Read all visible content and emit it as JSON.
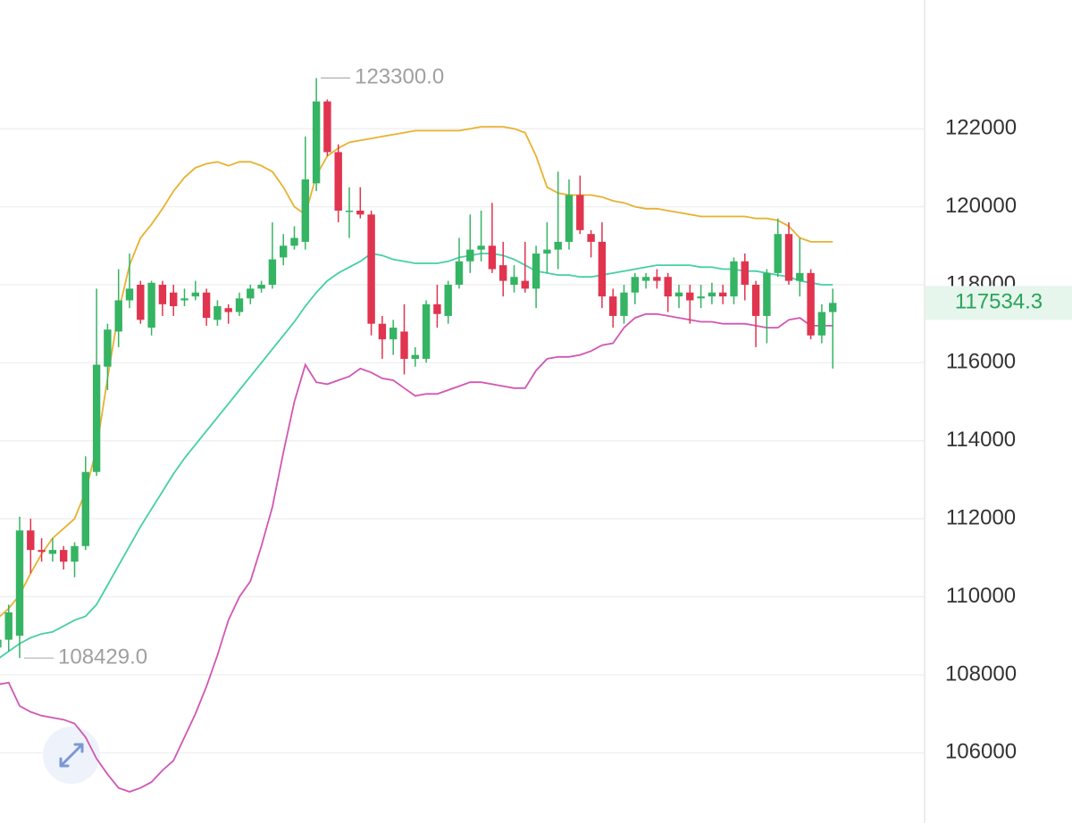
{
  "chart_data": {
    "type": "candlestick",
    "categories": [
      null,
      null,
      null,
      null,
      null,
      null,
      null,
      null,
      null,
      null,
      null,
      null,
      null,
      null,
      null,
      null,
      null,
      null,
      null,
      null,
      null,
      null,
      null,
      null,
      null,
      null,
      null,
      null,
      null,
      null,
      null,
      null,
      null,
      null,
      null,
      null,
      null,
      null,
      null,
      null,
      null,
      null,
      null,
      null,
      null,
      null,
      null,
      null,
      null,
      null,
      null,
      null,
      null,
      null,
      null,
      null,
      null,
      null,
      null,
      null,
      null,
      null,
      null,
      null,
      null,
      null,
      null,
      null,
      null,
      null,
      null,
      null,
      null,
      null,
      null,
      null,
      null
    ],
    "open": [
      108700,
      108900,
      109000,
      111700,
      111200,
      111100,
      111200,
      110900,
      111300,
      113200,
      115900,
      116800,
      117600,
      118000,
      116900,
      118000,
      117800,
      117600,
      117700,
      117800,
      117100,
      117400,
      117300,
      117650,
      117900,
      118000,
      118700,
      119000,
      119100,
      120600,
      122700,
      121400,
      119900,
      119900,
      119800,
      117000,
      116600,
      116800,
      116100,
      116100,
      117500,
      117200,
      118000,
      118600,
      118900,
      119000,
      118500,
      118000,
      118100,
      117900,
      118800,
      118900,
      119100,
      120300,
      119300,
      119100,
      117700,
      117200,
      117800,
      118100,
      118200,
      118200,
      117700,
      117800,
      117650,
      117700,
      117800,
      117700,
      118600,
      118000,
      117200,
      118300,
      119300,
      118100,
      118300,
      116700,
      117300
    ],
    "high": [
      109200,
      109800,
      112050,
      112000,
      111500,
      111500,
      111300,
      111400,
      113600,
      117900,
      117000,
      118400,
      118800,
      118100,
      118100,
      118100,
      118000,
      117900,
      118100,
      117900,
      117600,
      117500,
      117800,
      118000,
      118100,
      119600,
      119300,
      119500,
      121800,
      123300,
      122750,
      121600,
      120500,
      120500,
      119900,
      117200,
      117100,
      117500,
      116400,
      117600,
      118000,
      118100,
      119200,
      119800,
      119900,
      120100,
      119100,
      118500,
      119100,
      119000,
      119600,
      120900,
      120700,
      120800,
      119400,
      119600,
      117900,
      118000,
      118300,
      118300,
      118400,
      118300,
      118000,
      118000,
      118000,
      118050,
      118000,
      118700,
      118800,
      118100,
      118400,
      119700,
      119600,
      119200,
      118400,
      117500,
      117900
    ],
    "low": [
      108500,
      108600,
      108429,
      110600,
      110900,
      110900,
      110700,
      110500,
      111200,
      113100,
      115300,
      116400,
      117400,
      117000,
      116700,
      117200,
      117200,
      117450,
      117600,
      116950,
      116950,
      117000,
      117200,
      117500,
      117800,
      117900,
      118500,
      118900,
      118900,
      120400,
      121300,
      119600,
      119200,
      119700,
      116700,
      116100,
      116200,
      115700,
      115900,
      116000,
      116900,
      117000,
      117900,
      118300,
      118600,
      118300,
      117700,
      117800,
      117800,
      117400,
      118300,
      118400,
      118900,
      119300,
      118700,
      117400,
      116900,
      117000,
      117500,
      117900,
      117900,
      117300,
      117400,
      117000,
      117400,
      117500,
      117500,
      117500,
      117600,
      116400,
      116500,
      118200,
      118000,
      117700,
      116600,
      116500,
      115850
    ],
    "close": [
      108900,
      109600,
      111700,
      111200,
      111150,
      111200,
      110900,
      111300,
      113200,
      115950,
      116850,
      117600,
      117900,
      117100,
      118050,
      117500,
      117450,
      117650,
      117800,
      117150,
      117450,
      117300,
      117650,
      117900,
      118000,
      118650,
      119000,
      119200,
      120700,
      122700,
      121400,
      119900,
      119900,
      119800,
      117000,
      116600,
      116900,
      116100,
      116200,
      117500,
      117250,
      118000,
      118600,
      118900,
      119000,
      118400,
      118100,
      118200,
      117900,
      118800,
      118900,
      119100,
      120300,
      119400,
      119100,
      117700,
      117200,
      117800,
      118200,
      118200,
      118100,
      117700,
      117800,
      117600,
      117700,
      117800,
      117700,
      118600,
      118000,
      117200,
      118300,
      119300,
      118100,
      118300,
      116700,
      117300,
      117534.3
    ],
    "up_color": "#35b463",
    "down_color": "#e0344f",
    "lines": [
      {
        "color": "#e8b130",
        "values": [
          109450,
          109700,
          110050,
          110600,
          111100,
          111500,
          111750,
          112000,
          112700,
          113800,
          115600,
          117300,
          118500,
          119200,
          119550,
          119950,
          120400,
          120750,
          121000,
          121100,
          121150,
          121050,
          121150,
          121150,
          121050,
          120900,
          120500,
          120000,
          119800,
          120800,
          121300,
          121500,
          121650,
          121700,
          121750,
          121800,
          121850,
          121900,
          121950,
          121950,
          121950,
          121950,
          121950,
          122000,
          122050,
          122050,
          122050,
          122000,
          121900,
          121300,
          120500,
          120350,
          120300,
          120300,
          120300,
          120250,
          120150,
          120100,
          120000,
          119950,
          119950,
          119900,
          119850,
          119800,
          119750,
          119750,
          119750,
          119750,
          119750,
          119700,
          119700,
          119650,
          119500,
          119200,
          119100,
          119100,
          119100
        ]
      },
      {
        "color": "#45cfa6",
        "values": [
          108400,
          108600,
          108800,
          108950,
          109050,
          109100,
          109250,
          109400,
          109500,
          109800,
          110300,
          110800,
          111300,
          111800,
          112250,
          112700,
          113150,
          113550,
          113900,
          114250,
          114600,
          114950,
          115300,
          115650,
          116000,
          116350,
          116700,
          117050,
          117450,
          117800,
          118100,
          118300,
          118450,
          118600,
          118800,
          118750,
          118650,
          118600,
          118550,
          118550,
          118550,
          118600,
          118700,
          118750,
          118800,
          118800,
          118750,
          118650,
          118500,
          118350,
          118300,
          118250,
          118250,
          118200,
          118200,
          118250,
          118300,
          118350,
          118400,
          118450,
          118500,
          118500,
          118500,
          118500,
          118450,
          118450,
          118400,
          118400,
          118350,
          118350,
          118300,
          118250,
          118200,
          118100,
          118050,
          118000,
          118000
        ]
      },
      {
        "color": "#d256b4",
        "values": [
          107750,
          107800,
          107200,
          107050,
          106950,
          106900,
          106850,
          106750,
          106400,
          105850,
          105450,
          105100,
          105000,
          105100,
          105250,
          105550,
          105800,
          106400,
          107000,
          107700,
          108500,
          109400,
          110000,
          110400,
          111300,
          112300,
          113700,
          115000,
          115950,
          115500,
          115450,
          115550,
          115650,
          115850,
          115750,
          115600,
          115550,
          115350,
          115150,
          115200,
          115200,
          115300,
          115400,
          115500,
          115500,
          115450,
          115400,
          115350,
          115350,
          115800,
          116100,
          116150,
          116150,
          116200,
          116300,
          116450,
          116500,
          116900,
          117150,
          117250,
          117250,
          117200,
          117150,
          117100,
          117050,
          117050,
          117000,
          117000,
          117000,
          116950,
          116900,
          116900,
          117100,
          117150,
          116950,
          116950,
          116950
        ]
      }
    ],
    "annotations": [
      {
        "value": 123300,
        "label": "123300.0"
      },
      {
        "value": 108429,
        "label": "108429.0"
      }
    ],
    "current_price": 117534.3,
    "ylim": [
      104200,
      125300
    ],
    "yticks": [
      106000,
      108000,
      110000,
      112000,
      114000,
      116000,
      118000,
      120000,
      122000
    ],
    "grid": true
  }
}
